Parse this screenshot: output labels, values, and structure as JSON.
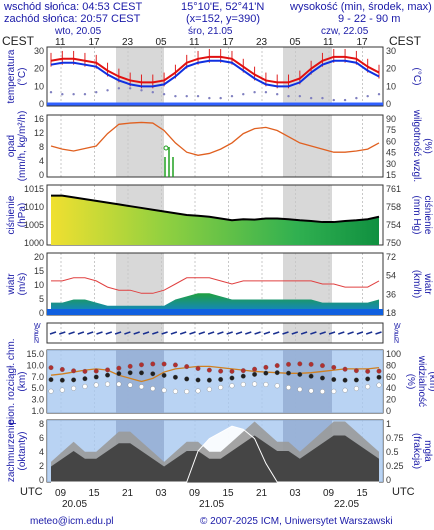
{
  "header": {
    "sunrise": "wschód słońca: 04:53 CEST",
    "sunset": "zachód słońca: 20:57 CEST",
    "coords": "15°10'E, 52°41'N",
    "grid": "(x=152, y=390)",
    "elevation_label": "wysokość (min, środek, max)",
    "elevation_values": "9 - 22 - 90 m"
  },
  "timezone_label": "CEST",
  "utc_label": "UTC",
  "day_labels": [
    "wto, 20.05",
    "śro, 21.05",
    "czw, 22.05"
  ],
  "hour_labels_top": [
    "11",
    "17",
    "23",
    "05",
    "11",
    "17",
    "23",
    "05",
    "11",
    "17"
  ],
  "hour_labels_bottom": [
    "09",
    "15",
    "21",
    "03",
    "09",
    "15",
    "21",
    "03",
    "09",
    "15"
  ],
  "date_labels_bottom": [
    "20.05",
    "21.05",
    "22.05"
  ],
  "footer": {
    "email": "meteo@icm.edu.pl",
    "copyright": "© 2007-2025 ICM, Uniwersytet Warszawski"
  },
  "panels": [
    {
      "id": "temperature",
      "label_left": "temperatura\n(°C)",
      "label_right": "(°C)",
      "ticks": [
        "30",
        "20",
        "10",
        "0"
      ]
    },
    {
      "id": "precip",
      "label_left": "opad\n(mm/h, kg/m²/h)",
      "label_right": "wilgotność wzgl.\n(%)",
      "ticks_left": [
        "16",
        "12",
        "8",
        "4",
        "0"
      ],
      "ticks_right": [
        "90",
        "75",
        "60",
        "45",
        "30",
        "15"
      ]
    },
    {
      "id": "pressure",
      "label_left": "ciśnienie\n(hPa)",
      "label_right": "(mm Hg)\nciśnienie",
      "ticks_left": [
        "1015",
        "1010",
        "1005",
        "1000"
      ],
      "ticks_right": [
        "761",
        "758",
        "754",
        "750"
      ]
    },
    {
      "id": "wind",
      "label_left": "wiatr\n(m/s)",
      "label_right": "(km/h)\nwiatr",
      "ticks_left": [
        "20",
        "15",
        "10",
        "5",
        "0"
      ],
      "ticks_right": [
        "72",
        "54",
        "36",
        "18"
      ]
    },
    {
      "id": "winddir",
      "label_left": "W\nS\nE\nN",
      "label_right": "W\nS\nE\nN"
    },
    {
      "id": "cloudbase",
      "label_left": "pion. rozciągł. chm.\n(km)",
      "label_right": "(%)\nwidzialność\n(km)",
      "ticks_left": [
        "15.0",
        "10.0",
        "7.0",
        "5.0",
        "3.0",
        "1.0"
      ],
      "ticks_right": [
        "100",
        "80",
        "60",
        "40",
        "20",
        "0"
      ]
    },
    {
      "id": "cloudcover",
      "label_left": "zachmurzenie\n(oktanty)",
      "label_right": "(frakcja)\nmgła",
      "ticks_left": [
        "8",
        "6",
        "4",
        "2",
        "0"
      ],
      "ticks_right": [
        "1",
        "0.75",
        "0.5",
        "0.25",
        "0"
      ]
    }
  ],
  "chart_data": [
    {
      "type": "line",
      "title": "temperatura",
      "ylabel": "(°C)",
      "ylim": [
        0,
        30
      ],
      "series": [
        {
          "name": "temperatura",
          "color": "#e01010",
          "values": [
            23,
            24,
            24,
            23,
            22,
            18,
            15,
            13,
            12,
            12,
            13,
            17,
            22,
            24,
            25,
            25,
            24,
            20,
            16,
            13,
            12,
            12,
            14,
            19,
            23,
            25,
            25,
            24,
            20,
            17
          ]
        },
        {
          "name": "temperatura odczuwalna",
          "color": "#1030e0",
          "values": [
            21,
            22,
            22,
            21,
            20,
            16,
            13,
            11,
            10,
            10,
            11,
            15,
            20,
            22,
            23,
            23,
            22,
            18,
            14,
            11,
            10,
            10,
            12,
            17,
            21,
            23,
            23,
            22,
            18,
            15
          ]
        },
        {
          "name": "punkt rosy",
          "color": "#8080c0",
          "values": [
            7,
            6,
            6,
            6,
            7,
            8,
            9,
            9,
            8,
            7,
            6,
            5,
            5,
            5,
            4,
            4,
            5,
            6,
            7,
            7,
            6,
            5,
            5,
            4,
            4,
            3,
            3,
            4,
            5,
            6
          ]
        }
      ]
    },
    {
      "type": "line",
      "title": "opad",
      "ylabel": "(mm/h, kg/m²/h)",
      "ylim": [
        0,
        16
      ],
      "series": [
        {
          "name": "wilgotność",
          "color": "#e06020",
          "values": [
            50,
            45,
            42,
            46,
            50,
            70,
            85,
            87,
            88,
            87,
            75,
            55,
            40,
            35,
            38,
            45,
            55,
            70,
            78,
            80,
            75,
            65,
            55,
            50,
            45,
            40,
            40,
            42,
            45,
            55
          ]
        },
        {
          "name": "opad",
          "color": "#20a020",
          "values": [
            0,
            0,
            0,
            0,
            0,
            0,
            0,
            0,
            0,
            0,
            0,
            0,
            0,
            0,
            0,
            0,
            0,
            0,
            0,
            0,
            0,
            0,
            0,
            0,
            0,
            0,
            0,
            0,
            0,
            0
          ]
        }
      ]
    },
    {
      "type": "area",
      "title": "ciśnienie",
      "ylabel": "(hPa)",
      "ylim": [
        1000,
        1017
      ],
      "series": [
        {
          "name": "ciśnienie",
          "color": "#000000",
          "values": [
            1014,
            1014,
            1013.5,
            1013,
            1012.5,
            1012,
            1011.5,
            1011,
            1010.5,
            1010,
            1009.5,
            1009,
            1008.5,
            1008.3,
            1008,
            1007.5,
            1007,
            1007.3,
            1007.2,
            1007.5,
            1007.5,
            1007.3,
            1007,
            1006.8,
            1006.5,
            1006.5,
            1006.8,
            1007,
            1007.3,
            1008
          ]
        }
      ]
    },
    {
      "type": "area",
      "title": "wiatr",
      "ylabel": "(m/s)",
      "ylim": [
        0,
        20
      ],
      "series": [
        {
          "name": "poryw",
          "color": "#e04040",
          "values": [
            11,
            11,
            12,
            12,
            11,
            9,
            8,
            8,
            7,
            7,
            8,
            10,
            12,
            12,
            12,
            11,
            10,
            11,
            11,
            11,
            11,
            11,
            11,
            11,
            10,
            10,
            9,
            9,
            9,
            11
          ]
        },
        {
          "name": "wiatr",
          "color": "#1070d0",
          "values": [
            4,
            4,
            5,
            5,
            4,
            3,
            3,
            3,
            3,
            3,
            3,
            5,
            6,
            7,
            7,
            6,
            5,
            5,
            5,
            5,
            5,
            5,
            5,
            5,
            4,
            4,
            4,
            4,
            4,
            5
          ]
        }
      ]
    },
    {
      "type": "scatter",
      "title": "widzialność",
      "ylabel": "(km)",
      "ylim": [
        0,
        100
      ],
      "series": [
        {
          "name": "widzialność",
          "color": "#d08020",
          "values": [
            60,
            62,
            65,
            68,
            70,
            68,
            60,
            55,
            50,
            55,
            65,
            70,
            72,
            74,
            74,
            72,
            70,
            68,
            66,
            65,
            64,
            63,
            63,
            64,
            66,
            68,
            70,
            70,
            70,
            72
          ]
        }
      ]
    },
    {
      "type": "area",
      "title": "zachmurzenie",
      "ylabel": "(oktanty)",
      "ylim": [
        0,
        8
      ],
      "series": [
        {
          "name": "zachmurzenie",
          "color": "#606060",
          "values": [
            2,
            3,
            4,
            3,
            3,
            4,
            5,
            5,
            4,
            3,
            2,
            3,
            4,
            4,
            3,
            3,
            4,
            5,
            6,
            5,
            4,
            4,
            3,
            4,
            5,
            6,
            6,
            5,
            4,
            3
          ]
        },
        {
          "name": "mgła",
          "color": "#ffffff",
          "values": [
            0,
            0,
            0,
            0,
            0,
            0,
            0,
            0,
            0,
            0,
            0,
            0,
            0,
            0.5,
            0.7,
            0.8,
            0.9,
            0.85,
            0.7,
            0.3,
            0,
            0,
            0,
            0,
            0,
            0,
            0,
            0,
            0,
            0
          ]
        }
      ]
    }
  ]
}
